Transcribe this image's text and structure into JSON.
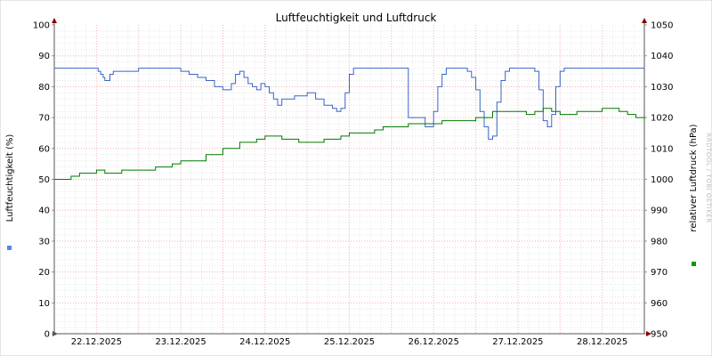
{
  "chart_data": {
    "type": "line",
    "title": "Luftfeuchtigkeit und Luftdruck",
    "watermark": "RRDTOOL / TOBI OETIKER",
    "left_axis": {
      "label": "Luftfeuchtigkeit (%)",
      "ylim": [
        0,
        100
      ],
      "ticks": [
        "0",
        "10",
        "20",
        "30",
        "40",
        "50",
        "60",
        "70",
        "80",
        "90",
        "100"
      ]
    },
    "right_axis": {
      "label": "relativer Luftdruck (hPa)",
      "ylim": [
        950,
        1050
      ],
      "ticks": [
        "950",
        "960",
        "970",
        "980",
        "990",
        "1000",
        "1010",
        "1020",
        "1030",
        "1040",
        "1050"
      ]
    },
    "x_axis": {
      "range_days": [
        0,
        7
      ],
      "tick_labels": [
        "22.12.2025",
        "23.12.2025",
        "24.12.2025",
        "25.12.2025",
        "26.12.2025",
        "27.12.2025",
        "28.12.2025"
      ]
    },
    "grid": true,
    "series": [
      {
        "axis": "left",
        "color": "#3a64c8",
        "legend_color": "#5a84ec",
        "x": [
          0,
          0.5,
          0.52,
          0.55,
          0.58,
          0.6,
          0.62,
          0.64,
          0.66,
          0.7,
          1.0,
          1.4,
          1.5,
          1.6,
          1.7,
          1.8,
          1.9,
          2.0,
          2.05,
          2.1,
          2.15,
          2.2,
          2.25,
          2.3,
          2.35,
          2.4,
          2.45,
          2.5,
          2.55,
          2.6,
          2.65,
          2.7,
          2.75,
          2.8,
          2.85,
          2.9,
          3.0,
          3.1,
          3.2,
          3.3,
          3.35,
          3.4,
          3.45,
          3.5,
          3.55,
          3.6,
          3.65,
          3.7,
          3.75,
          3.8,
          3.85,
          3.9,
          4.0,
          4.2,
          4.4,
          4.5,
          4.55,
          4.6,
          4.65,
          4.7,
          4.75,
          4.8,
          4.85,
          4.9,
          4.95,
          5.0,
          5.05,
          5.1,
          5.15,
          5.2,
          5.25,
          5.3,
          5.35,
          5.4,
          5.45,
          5.5,
          5.55,
          5.6,
          5.65,
          5.7,
          5.75,
          5.8,
          5.85,
          5.9,
          5.95,
          6.0,
          6.05,
          6.1,
          6.15,
          6.2,
          6.25,
          6.3,
          6.35,
          6.4,
          6.5,
          6.6,
          6.7,
          6.8,
          6.9,
          7.0
        ],
        "y": [
          86,
          86,
          85,
          84,
          83,
          82,
          82,
          82,
          84,
          85,
          86,
          86,
          85,
          84,
          83,
          82,
          80,
          79,
          79,
          81,
          84,
          85,
          83,
          81,
          80,
          79,
          81,
          80,
          78,
          76,
          74,
          76,
          76,
          76,
          77,
          77,
          78,
          76,
          74,
          73,
          72,
          73,
          78,
          84,
          86,
          86,
          86,
          86,
          86,
          86,
          86,
          86,
          86,
          70,
          67,
          72,
          80,
          84,
          86,
          86,
          86,
          86,
          86,
          85,
          83,
          79,
          72,
          67,
          63,
          64,
          75,
          82,
          85,
          86,
          86,
          86,
          86,
          86,
          86,
          85,
          79,
          69,
          67,
          71,
          80,
          85,
          86,
          86,
          86,
          86,
          86,
          86,
          86,
          86,
          86,
          86,
          86,
          86,
          86,
          86
        ],
        "values_note_unused": ""
      },
      {
        "axis": "right",
        "color": "#007a00",
        "legend_color": "#009900",
        "x": [
          0,
          0.2,
          0.3,
          0.5,
          0.6,
          0.8,
          0.9,
          1.0,
          1.2,
          1.4,
          1.5,
          1.6,
          1.8,
          2.0,
          2.2,
          2.4,
          2.5,
          2.7,
          2.9,
          3.0,
          3.2,
          3.4,
          3.5,
          3.6,
          3.7,
          3.8,
          3.9,
          4.0,
          4.2,
          4.4,
          4.5,
          4.6,
          4.8,
          4.9,
          5.0,
          5.2,
          5.4,
          5.5,
          5.6,
          5.7,
          5.8,
          5.9,
          6.0,
          6.2,
          6.4,
          6.5,
          6.6,
          6.7,
          6.8,
          6.9,
          7.0
        ],
        "y": [
          1000,
          1001,
          1002,
          1003,
          1002,
          1003,
          1003,
          1003,
          1004,
          1005,
          1006,
          1006,
          1008,
          1010,
          1012,
          1013,
          1014,
          1013,
          1012,
          1012,
          1013,
          1014,
          1015,
          1015,
          1015,
          1016,
          1017,
          1017,
          1018,
          1018,
          1018,
          1019,
          1019,
          1019,
          1020,
          1022,
          1022,
          1022,
          1021,
          1022,
          1023,
          1022,
          1021,
          1022,
          1022,
          1023,
          1023,
          1022,
          1021,
          1020,
          1019
        ],
        "values_note_unused": ""
      }
    ]
  }
}
